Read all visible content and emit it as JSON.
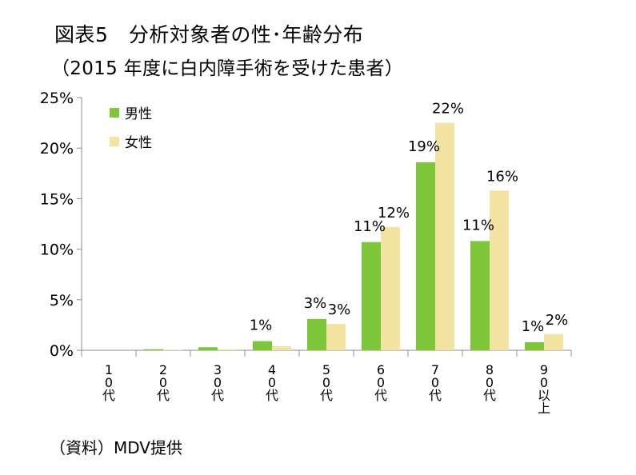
{
  "title_line1": "図表5　分析対象者の性･年齢分布",
  "title_line2": "（2015 年度に白内障手術を受けた患者）",
  "source_note": "（資料）MDV提供",
  "colors": {
    "male": "#7dc63a",
    "female": "#f2e3a3",
    "axis": "#8c8c8c"
  },
  "chart_data": {
    "type": "bar",
    "title": "分析対象者の性･年齢分布",
    "xlabel": "",
    "ylabel": "",
    "ylim": [
      0,
      25
    ],
    "yticks": [
      0,
      5,
      10,
      15,
      20,
      25
    ],
    "ytick_labels": [
      "0%",
      "5%",
      "10%",
      "15%",
      "20%",
      "25%"
    ],
    "grid": false,
    "legend_position": "top-left",
    "categories": [
      [
        "1",
        "0",
        "代"
      ],
      [
        "2",
        "0",
        "代"
      ],
      [
        "3",
        "0",
        "代"
      ],
      [
        "4",
        "0",
        "代"
      ],
      [
        "5",
        "0",
        "代"
      ],
      [
        "6",
        "0",
        "代"
      ],
      [
        "7",
        "0",
        "代"
      ],
      [
        "8",
        "0",
        "代"
      ],
      [
        "9",
        "0",
        "以",
        "上"
      ]
    ],
    "series": [
      {
        "name": "男性",
        "values": [
          0.0,
          0.1,
          0.3,
          0.9,
          3.1,
          10.7,
          18.6,
          10.8,
          0.8
        ],
        "labels": [
          "",
          "",
          "",
          "1%",
          "3%",
          "11%",
          "19%",
          "11%",
          "1%"
        ]
      },
      {
        "name": "女性",
        "values": [
          0.0,
          0.05,
          0.1,
          0.4,
          2.6,
          12.2,
          22.5,
          15.8,
          1.6
        ],
        "labels": [
          "",
          "",
          "",
          "",
          "3%",
          "12%",
          "22%",
          "16%",
          "2%"
        ]
      }
    ]
  }
}
